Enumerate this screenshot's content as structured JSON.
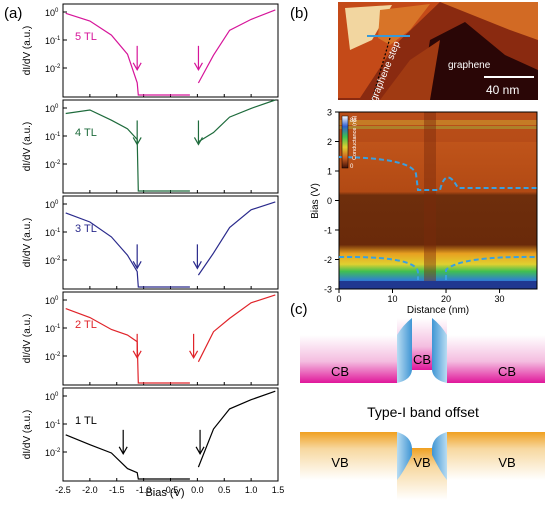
{
  "panel_labels": {
    "a": "(a)",
    "b": "(b)",
    "c": "(c)"
  },
  "a": {
    "xlabel": "Bias (V)",
    "ylabel": "dI/dV (a.u.)",
    "x_ticks": [
      "-2.5",
      "-2.0",
      "-1.5",
      "-1.0",
      "-0.5",
      "0.0",
      "0.5",
      "1.0",
      "1.5"
    ],
    "y_ticks": [
      {
        "base": "10",
        "exp": "0"
      },
      {
        "base": "10",
        "exp": "-1"
      },
      {
        "base": "10",
        "exp": "-2"
      }
    ],
    "panels": [
      {
        "label": "5 TL",
        "color": "#d6159a"
      },
      {
        "label": "4 TL",
        "color": "#1e6b3c"
      },
      {
        "label": "3 TL",
        "color": "#2a2a8c"
      },
      {
        "label": "2 TL",
        "color": "#e0242a"
      },
      {
        "label": "1 TL",
        "color": "#000000"
      }
    ]
  },
  "b": {
    "stm_labels": {
      "graphene_step": "graphene step",
      "graphene": "graphene",
      "scale": "40 nm"
    },
    "map": {
      "ylabel": "Bias (V)",
      "xlabel": "Distance (nm)",
      "y_ticks": [
        "3",
        "2",
        "1",
        "0",
        "-1",
        "-2",
        "-3"
      ],
      "x_ticks": [
        "0",
        "10",
        "20",
        "30"
      ],
      "colorbar_title": "Conductance (nS)",
      "colorbar_max": "88",
      "colorbar_min": "0"
    }
  },
  "c": {
    "cb_label": "CB",
    "vb_label": "VB",
    "title": "Type-I band offset",
    "colors": {
      "cb": "#e0179a",
      "vb": "#f0a020",
      "interface": "#4aa0d8"
    }
  }
}
